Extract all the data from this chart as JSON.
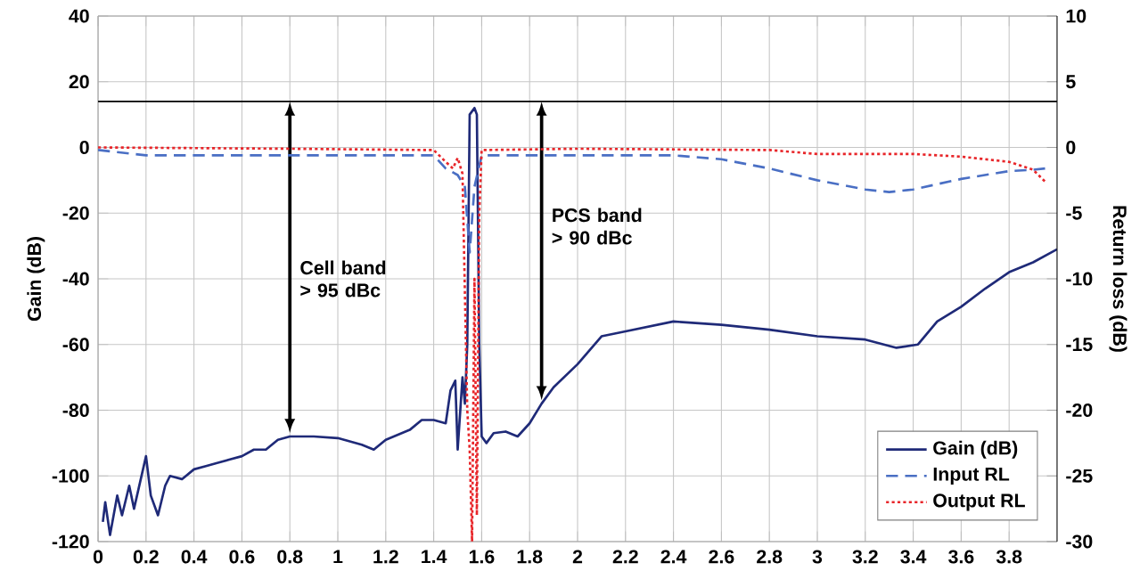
{
  "chart_data": {
    "type": "line",
    "xlabel": null,
    "ylabel": "Gain (dB)",
    "y2label": "Return loss (dB)",
    "xlim": [
      0,
      4
    ],
    "xticks": [
      0,
      0.2,
      0.4,
      0.6,
      0.8,
      1,
      1.2,
      1.4,
      1.6,
      1.8,
      2,
      2.2,
      2.4,
      2.6,
      2.8,
      3,
      3.2,
      3.4,
      3.6,
      3.8
    ],
    "ylim": [
      -120,
      40
    ],
    "yticks": [
      -120,
      -100,
      -80,
      -60,
      -40,
      -20,
      0,
      20,
      40
    ],
    "y2lim": [
      -30,
      10
    ],
    "y2ticks": [
      -30,
      -25,
      -20,
      -15,
      -10,
      -5,
      0,
      5,
      10
    ],
    "grid": true,
    "legend": "bottom right",
    "ref_lines": [
      {
        "axis": "y",
        "value": 14,
        "color": "#000000"
      }
    ],
    "annotations": [
      "Cell band > 95 dBc",
      "PCS band > 90 dBc"
    ],
    "series": [
      {
        "name": "Gain (dB)",
        "color": "#1f2a78",
        "line_style": "solid",
        "axis": "y",
        "x": [
          0.02,
          0.03,
          0.05,
          0.08,
          0.1,
          0.13,
          0.15,
          0.2,
          0.22,
          0.25,
          0.28,
          0.3,
          0.35,
          0.4,
          0.45,
          0.5,
          0.55,
          0.6,
          0.65,
          0.7,
          0.75,
          0.8,
          0.9,
          1.0,
          1.1,
          1.15,
          1.2,
          1.3,
          1.35,
          1.4,
          1.45,
          1.47,
          1.49,
          1.5,
          1.52,
          1.53,
          1.54,
          1.55,
          1.57,
          1.58,
          1.59,
          1.6,
          1.62,
          1.65,
          1.7,
          1.75,
          1.8,
          1.85,
          1.9,
          2.0,
          2.1,
          2.2,
          2.4,
          2.6,
          2.8,
          3.0,
          3.2,
          3.33,
          3.42,
          3.5,
          3.6,
          3.7,
          3.8,
          3.9,
          4.0
        ],
        "values": [
          -114,
          -108,
          -118,
          -106,
          -112,
          -103,
          -110,
          -94,
          -106,
          -112,
          -103,
          -100,
          -101,
          -98,
          -97,
          -96,
          -95,
          -94,
          -92,
          -92,
          -89,
          -88,
          -88,
          -88.5,
          -90.5,
          -92,
          -89,
          -86,
          -83,
          -83,
          -84,
          -74,
          -71,
          -92,
          -70,
          -78,
          -60,
          10,
          12,
          10,
          -60,
          -88,
          -90,
          -87,
          -86.5,
          -88,
          -84,
          -78,
          -73,
          -66,
          -57.5,
          -56,
          -53,
          -54,
          -55.5,
          -57.5,
          -58.5,
          -61,
          -60,
          -53,
          -48.5,
          -43,
          -38,
          -35,
          -31
        ]
      },
      {
        "name": "Input RL",
        "color": "#4a6fc4",
        "line_style": "dashed",
        "axis": "y2",
        "x": [
          0,
          0.2,
          1.4,
          1.45,
          1.5,
          1.53,
          1.55,
          1.57,
          1.6,
          2.0,
          2.4,
          2.6,
          2.8,
          3.0,
          3.2,
          3.3,
          3.4,
          3.6,
          3.8,
          3.9,
          3.95
        ],
        "values": [
          -0.2,
          -0.6,
          -0.6,
          -1.6,
          -2.1,
          -3,
          -8,
          -3,
          -0.6,
          -0.6,
          -0.6,
          -0.9,
          -1.6,
          -2.5,
          -3.2,
          -3.4,
          -3.2,
          -2.4,
          -1.8,
          -1.7,
          -1.6
        ]
      },
      {
        "name": "Output RL",
        "color": "#e8262a",
        "line_style": "dotted",
        "axis": "y2",
        "x": [
          0,
          0.8,
          1.4,
          1.45,
          1.48,
          1.5,
          1.52,
          1.54,
          1.55,
          1.56,
          1.57,
          1.58,
          1.59,
          1.6,
          2.0,
          2.8,
          3.0,
          3.4,
          3.6,
          3.8,
          3.9,
          3.95
        ],
        "values": [
          0,
          -0.1,
          -0.2,
          -1.1,
          -1.6,
          -0.8,
          -2,
          -20,
          -23,
          -30,
          -10,
          -28,
          -5,
          -0.2,
          -0.1,
          -0.2,
          -0.5,
          -0.5,
          -0.7,
          -1.1,
          -1.7,
          -2.6
        ]
      }
    ]
  }
}
